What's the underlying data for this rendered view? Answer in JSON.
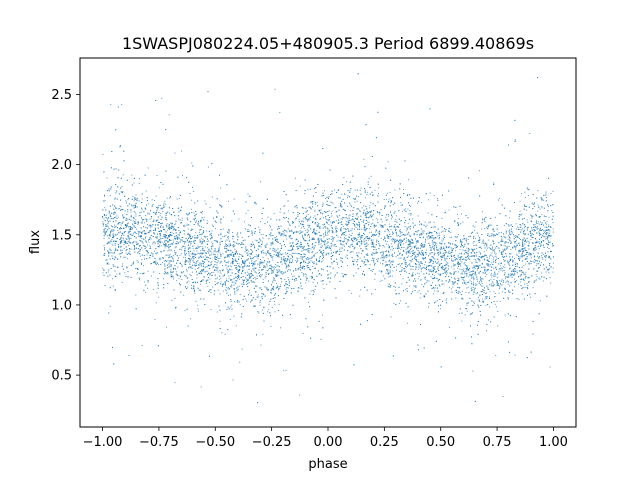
{
  "chart_data": {
    "type": "scatter",
    "title": "1SWASPJ080224.05+480905.3 Period 6899.40869s",
    "xlabel": "phase",
    "ylabel": "flux",
    "xlim": [
      -1.1,
      1.1
    ],
    "ylim": [
      0.13,
      2.76
    ],
    "x_ticks": [
      {
        "value": -1.0,
        "label": "−1.00"
      },
      {
        "value": -0.75,
        "label": "−0.75"
      },
      {
        "value": -0.5,
        "label": "−0.50"
      },
      {
        "value": -0.25,
        "label": "−0.25"
      },
      {
        "value": 0.0,
        "label": "0.00"
      },
      {
        "value": 0.25,
        "label": "0.25"
      },
      {
        "value": 0.5,
        "label": "0.50"
      },
      {
        "value": 0.75,
        "label": "0.75"
      },
      {
        "value": 1.0,
        "label": "1.00"
      }
    ],
    "y_ticks": [
      {
        "value": 0.5,
        "label": "0.5"
      },
      {
        "value": 1.0,
        "label": "1.0"
      },
      {
        "value": 1.5,
        "label": "1.5"
      },
      {
        "value": 2.0,
        "label": "2.0"
      },
      {
        "value": 2.5,
        "label": "2.5"
      }
    ],
    "grid": false,
    "marker_color": "#1f77b4",
    "series": [
      {
        "x_range": [
          -1.0,
          1.0
        ],
        "y_range": [
          0.27,
          2.72
        ],
        "points": [
          {
            "x": -1.0,
            "y": 1.5
          },
          {
            "x": -0.9,
            "y": 1.53
          },
          {
            "x": -0.8,
            "y": 1.5
          },
          {
            "x": -0.7,
            "y": 1.45
          },
          {
            "x": -0.6,
            "y": 1.38
          },
          {
            "x": -0.5,
            "y": 1.32
          },
          {
            "x": -0.4,
            "y": 1.28
          },
          {
            "x": -0.33,
            "y": 1.27
          },
          {
            "x": -0.25,
            "y": 1.3
          },
          {
            "x": -0.15,
            "y": 1.38
          },
          {
            "x": -0.05,
            "y": 1.46
          },
          {
            "x": 0.0,
            "y": 1.5
          },
          {
            "x": 0.1,
            "y": 1.53
          },
          {
            "x": 0.2,
            "y": 1.5
          },
          {
            "x": 0.3,
            "y": 1.45
          },
          {
            "x": 0.4,
            "y": 1.38
          },
          {
            "x": 0.5,
            "y": 1.32
          },
          {
            "x": 0.6,
            "y": 1.28
          },
          {
            "x": 0.67,
            "y": 1.27
          },
          {
            "x": 0.75,
            "y": 1.3
          },
          {
            "x": 0.85,
            "y": 1.38
          },
          {
            "x": 0.95,
            "y": 1.46
          },
          {
            "x": 1.0,
            "y": 1.5
          }
        ]
      }
    ]
  }
}
